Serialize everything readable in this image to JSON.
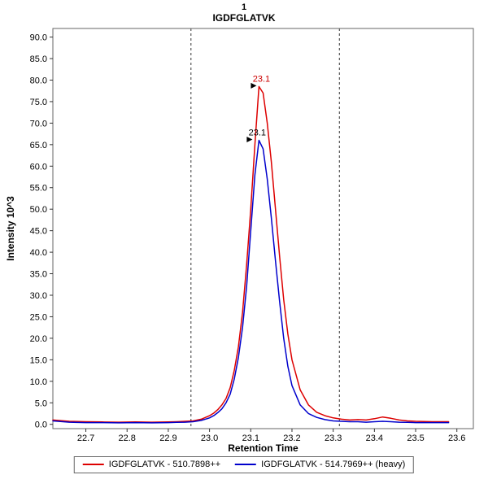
{
  "chart_data": {
    "type": "line",
    "title": "1",
    "subtitle": "IGDFGLATVK",
    "xlabel": "Retention Time",
    "ylabel": "Intensity 10^3",
    "xlim": [
      22.62,
      23.64
    ],
    "ylim": [
      0,
      90
    ],
    "grid": false,
    "legend_position": "bottom",
    "xticks": {
      "values": [
        22.7,
        22.8,
        22.9,
        23.0,
        23.1,
        23.2,
        23.3,
        23.4,
        23.5,
        23.6
      ],
      "labels": [
        "22.7",
        "22.8",
        "22.9",
        "23.0",
        "23.1",
        "23.2",
        "23.3",
        "23.4",
        "23.5",
        "23.6"
      ]
    },
    "yticks": {
      "values": [
        0,
        5,
        10,
        15,
        20,
        25,
        30,
        35,
        40,
        45,
        50,
        55,
        60,
        65,
        70,
        75,
        80,
        85,
        90
      ],
      "labels": [
        "0.0",
        "5.0",
        "10.0",
        "15.0",
        "20.0",
        "25.0",
        "30.0",
        "35.0",
        "40.0",
        "45.0",
        "50.0",
        "55.0",
        "60.0",
        "65.0",
        "70.0",
        "75.0",
        "80.0",
        "85.0",
        "90.0"
      ]
    },
    "integration_boundaries": [
      22.955,
      23.315
    ],
    "boundary_color": "#333333",
    "x": [
      22.62,
      22.66,
      22.7,
      22.74,
      22.78,
      22.82,
      22.86,
      22.9,
      22.92,
      22.94,
      22.96,
      22.98,
      23.0,
      23.01,
      23.02,
      23.03,
      23.04,
      23.05,
      23.06,
      23.07,
      23.08,
      23.09,
      23.1,
      23.11,
      23.12,
      23.13,
      23.14,
      23.15,
      23.16,
      23.17,
      23.18,
      23.19,
      23.2,
      23.22,
      23.24,
      23.26,
      23.28,
      23.3,
      23.32,
      23.34,
      23.36,
      23.38,
      23.4,
      23.42,
      23.44,
      23.46,
      23.48,
      23.5,
      23.54,
      23.58
    ],
    "series": [
      {
        "name": "IGDFGLATVK - 510.7898++",
        "color": "#dd0000",
        "values": [
          1.0,
          0.7,
          0.6,
          0.55,
          0.5,
          0.55,
          0.5,
          0.55,
          0.6,
          0.7,
          0.8,
          1.2,
          2.0,
          2.6,
          3.4,
          4.5,
          6.0,
          8.5,
          12.5,
          18.0,
          26.0,
          37.0,
          50.0,
          65.0,
          78.5,
          77.0,
          70.0,
          61.0,
          50.0,
          39.0,
          29.0,
          21.0,
          15.0,
          8.0,
          4.5,
          2.8,
          2.0,
          1.5,
          1.2,
          1.0,
          1.1,
          1.0,
          1.3,
          1.7,
          1.4,
          1.0,
          0.8,
          0.7,
          0.6,
          0.6
        ]
      },
      {
        "name": "IGDFGLATVK - 514.7969++ (heavy)",
        "color": "#0000cc",
        "values": [
          0.8,
          0.5,
          0.4,
          0.4,
          0.35,
          0.4,
          0.35,
          0.4,
          0.45,
          0.5,
          0.6,
          0.9,
          1.5,
          2.0,
          2.7,
          3.6,
          5.0,
          7.0,
          10.5,
          15.5,
          22.5,
          32.0,
          45.0,
          58.0,
          66.0,
          64.0,
          57.0,
          48.0,
          38.0,
          28.5,
          20.0,
          13.5,
          9.0,
          4.5,
          2.5,
          1.6,
          1.1,
          0.8,
          0.7,
          0.6,
          0.6,
          0.5,
          0.6,
          0.7,
          0.6,
          0.5,
          0.45,
          0.4,
          0.4,
          0.4
        ]
      }
    ],
    "annotations": [
      {
        "text": "23.1",
        "x": 23.12,
        "y": 78.5,
        "color": "#cc0000"
      },
      {
        "text": "23.1",
        "x": 23.11,
        "y": 66.0,
        "color": "#000000"
      }
    ]
  }
}
